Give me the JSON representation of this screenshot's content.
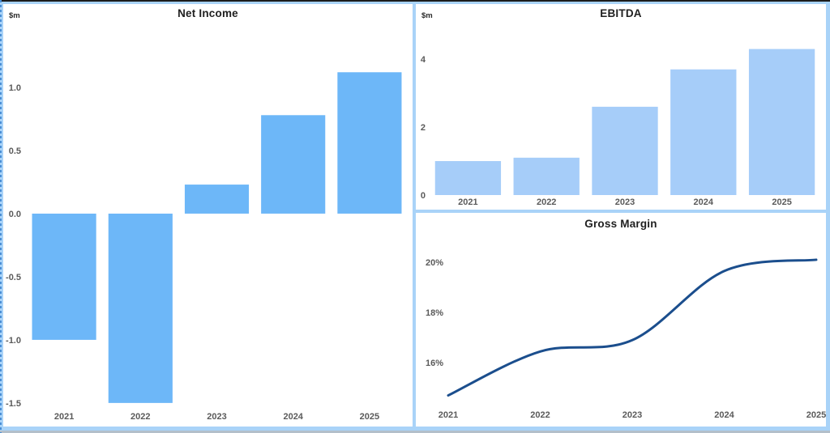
{
  "window": {
    "frame_color": "#a9d3f8",
    "top_edge_color": "#1c1c1c",
    "bottom_strip_color": "#b3bfca",
    "panel_background": "#ffffff"
  },
  "text_colors": {
    "title": "#1f1f1f",
    "tick": "#5a5a5a"
  },
  "chart_data": [
    {
      "id": "net-income",
      "type": "bar",
      "title": "Net Income",
      "unit_label": "$m",
      "categories": [
        "2021",
        "2022",
        "2023",
        "2024",
        "2025"
      ],
      "values": [
        -1.0,
        -1.5,
        0.23,
        0.78,
        1.12
      ],
      "ylim": [
        -1.52,
        1.5
      ],
      "yticks": [
        1.0,
        0.5,
        0.0,
        -0.5,
        -1.0,
        -1.5
      ],
      "ytick_labels": [
        "1.0",
        "0.5",
        "0.0",
        "-0.5",
        "-1.0",
        "-1.5"
      ],
      "grid": false,
      "legend": false,
      "bar_color": "#6db7f8"
    },
    {
      "id": "ebitda",
      "type": "bar",
      "title": "EBITDA",
      "unit_label": "$m",
      "categories": [
        "2021",
        "2022",
        "2023",
        "2024",
        "2025"
      ],
      "values": [
        1.0,
        1.1,
        2.6,
        3.7,
        4.3
      ],
      "ylim": [
        0,
        5.1
      ],
      "yticks": [
        4,
        2,
        0
      ],
      "ytick_labels": [
        "4",
        "2",
        "0"
      ],
      "grid": false,
      "legend": false,
      "bar_color": "#a6cdf9"
    },
    {
      "id": "gross-margin",
      "type": "line",
      "title": "Gross Margin",
      "unit_label": "",
      "categories": [
        "2021",
        "2022",
        "2023",
        "2024",
        "2025"
      ],
      "values": [
        14.7,
        16.45,
        16.9,
        19.65,
        20.1
      ],
      "ylim": [
        14.3,
        21.0
      ],
      "yticks": [
        20,
        18,
        16
      ],
      "ytick_labels": [
        "20%",
        "18%",
        "16%"
      ],
      "grid": false,
      "legend": false,
      "line_color": "#1b4e8d"
    }
  ]
}
